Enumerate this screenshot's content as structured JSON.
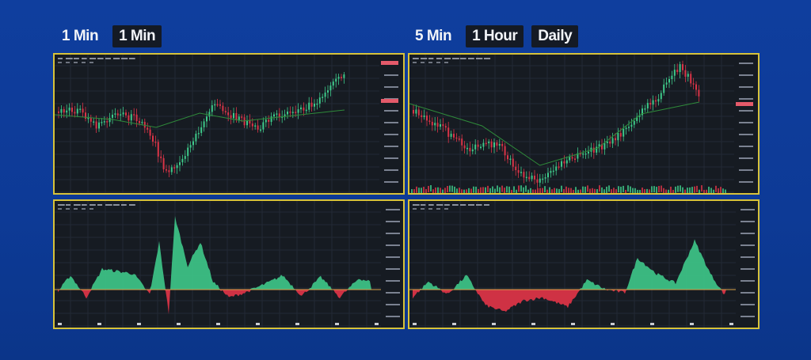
{
  "left_tabs": [
    "1 Min",
    "1 Min"
  ],
  "right_tabs": [
    "5 Min",
    "1 Hour",
    "Daily"
  ],
  "colors": {
    "background": "#0f3e9e",
    "panel_bg": "#161b22",
    "panel_border": "#d7c23a",
    "up": "#3ec98a",
    "down": "#d93447",
    "ma": "#2f8a3a",
    "price_tag": "#e45a6a"
  }
}
